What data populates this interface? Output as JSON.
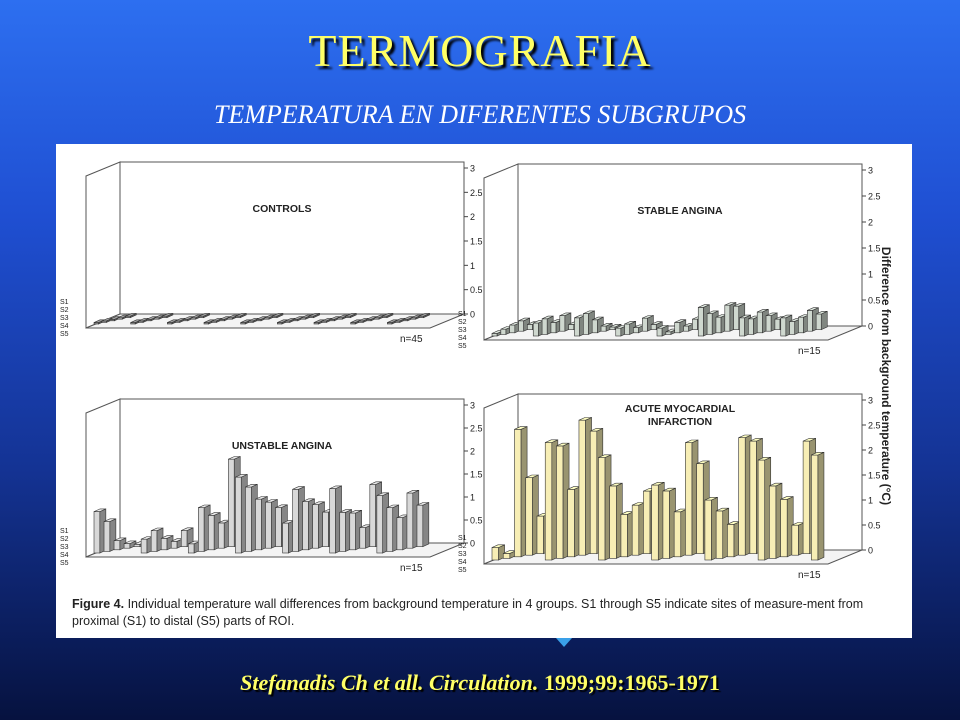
{
  "slide": {
    "title": "TERMOGRAFIA",
    "subtitle": "TEMPERATURA EN DIFERENTES SUBGRUPOS",
    "citation_italic": "Stefanadis Ch et all.  Circulation.",
    "citation_rest": " 1999;99:1965-1971"
  },
  "figure": {
    "caption_label": "Figure 4.",
    "caption_text": " Individual temperature wall differences from background temperature in 4 groups. S1 through S5 indicate sites of measure-ment from proximal (S1) to distal (S5) parts of ROI.",
    "y_axis_title": "Difference from background temperature (°C)"
  },
  "colors": {
    "title": "#ffff66",
    "citation": "#ffff66",
    "bg_top": "#2d6ff0",
    "bg_bottom": "#06123f",
    "controls_bar": "#9a9a9a",
    "stable_bar": "#cfd8cf",
    "unstable_bar": "#d8d8d8",
    "ami_bar": "#f7eeb5",
    "arrow": "#3aa0e8"
  },
  "chart_data": [
    {
      "type": "bar",
      "title": "CONTROLS",
      "n_label": "n=45",
      "y_ticks": [
        "0",
        "0.5",
        "1",
        "1.5",
        "2",
        "2.5",
        "3"
      ],
      "ylim": [
        0,
        3
      ],
      "series_labels": [
        "S1",
        "S2",
        "S3",
        "S4",
        "S5"
      ],
      "values": [
        0.03,
        0.03,
        0.03,
        0.03,
        0.03,
        0.03,
        0.03,
        0.03,
        0.03,
        0.03,
        0.03,
        0.03,
        0.03,
        0.03,
        0.03,
        0.03,
        0.03,
        0.03,
        0.03,
        0.03,
        0.03,
        0.03,
        0.03,
        0.03,
        0.03,
        0.03,
        0.03,
        0.03,
        0.03,
        0.03,
        0.03,
        0.03,
        0.03,
        0.03,
        0.03,
        0.03,
        0.03,
        0.03,
        0.03,
        0.03,
        0.03,
        0.03,
        0.03,
        0.03,
        0.03
      ]
    },
    {
      "type": "bar",
      "title": "STABLE ANGINA",
      "n_label": "n=15",
      "y_ticks": [
        "0",
        "0.5",
        "1",
        "1.5",
        "2",
        "2.5",
        "3"
      ],
      "ylim": [
        0,
        3
      ],
      "series_labels": [
        "S1",
        "S2",
        "S3",
        "S4",
        "S5"
      ],
      "values": [
        0.05,
        0.1,
        0.15,
        0.2,
        0.1,
        0.25,
        0.3,
        0.2,
        0.3,
        0.1,
        0.35,
        0.4,
        0.25,
        0.1,
        0.05,
        0.15,
        0.2,
        0.1,
        0.25,
        0.1,
        0.15,
        0.05,
        0.2,
        0.1,
        0.2,
        0.55,
        0.4,
        0.3,
        0.5,
        0.45,
        0.35,
        0.3,
        0.4,
        0.3,
        0.2,
        0.35,
        0.25,
        0.3,
        0.4,
        0.3
      ]
    },
    {
      "type": "bar",
      "title": "UNSTABLE ANGINA",
      "n_label": "n=15",
      "y_ticks": [
        "0",
        "0.5",
        "1",
        "1.5",
        "2",
        "2.5",
        "3"
      ],
      "ylim": [
        0,
        3
      ],
      "series_labels": [
        "S1",
        "S2",
        "S3",
        "S4",
        "S5"
      ],
      "values": [
        0.9,
        0.65,
        0.2,
        0.1,
        0.05,
        0.3,
        0.45,
        0.25,
        0.15,
        0.35,
        0.2,
        0.95,
        0.75,
        0.55,
        1.9,
        1.65,
        1.4,
        1.1,
        1.0,
        0.85,
        0.65,
        1.35,
        1.05,
        0.95,
        0.75,
        1.4,
        0.85,
        0.8,
        0.45,
        1.35,
        1.25,
        0.95,
        0.7,
        1.2,
        0.9
      ]
    },
    {
      "type": "bar",
      "title": "ACUTE MYOCARDIAL INFARCTION",
      "n_label": "n=15",
      "y_ticks": [
        "0",
        "0.5",
        "1",
        "1.5",
        "2",
        "2.5",
        "3"
      ],
      "ylim": [
        0,
        3
      ],
      "series_labels": [
        "S1",
        "S2",
        "S3",
        "S4",
        "S5"
      ],
      "values": [
        0.25,
        0.1,
        2.55,
        1.55,
        0.75,
        2.35,
        2.25,
        1.35,
        2.7,
        2.45,
        2.05,
        1.45,
        0.85,
        1.0,
        1.25,
        1.5,
        1.35,
        0.9,
        2.25,
        1.8,
        1.2,
        0.95,
        0.65,
        2.35,
        2.25,
        2.0,
        1.45,
        1.15,
        0.6,
        2.25,
        2.1
      ]
    }
  ]
}
